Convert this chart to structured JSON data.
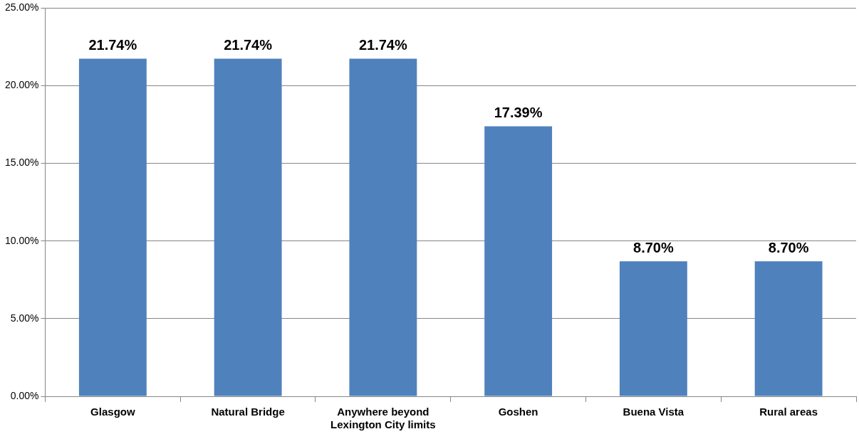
{
  "chart_data": {
    "type": "bar",
    "categories": [
      "Glasgow",
      "Natural Bridge",
      "Anywhere beyond Lexington City limits",
      "Goshen",
      "Buena Vista",
      "Rural areas"
    ],
    "values": [
      21.74,
      21.74,
      21.74,
      17.39,
      8.7,
      8.7
    ],
    "value_labels": [
      "21.74%",
      "21.74%",
      "21.74%",
      "17.39%",
      "8.70%",
      "8.70%"
    ],
    "color": "#4f81bd",
    "ylim": [
      0,
      25
    ],
    "yticks": [
      {
        "value": 0,
        "label": "0.00%"
      },
      {
        "value": 5,
        "label": "5.00%"
      },
      {
        "value": 10,
        "label": "10.00%"
      },
      {
        "value": 15,
        "label": "15.00%"
      },
      {
        "value": 20,
        "label": "20.00%"
      },
      {
        "value": 25,
        "label": "25.00%"
      }
    ],
    "grid": "y",
    "legend": false
  }
}
